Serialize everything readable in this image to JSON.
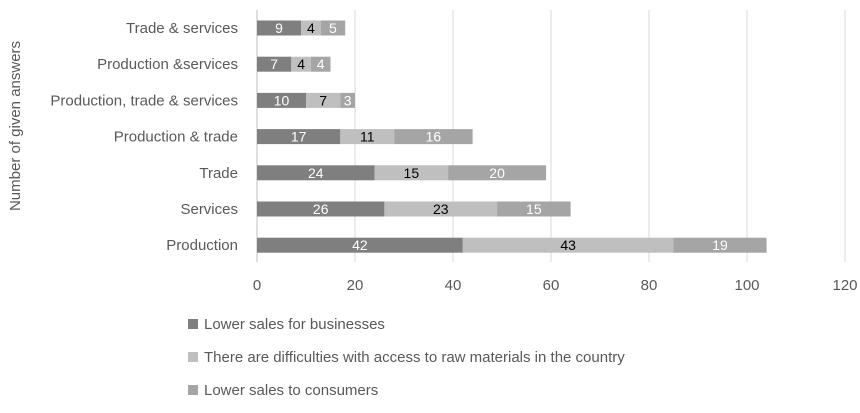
{
  "chart_data": {
    "type": "bar",
    "orientation": "horizontal",
    "stacked": true,
    "title": "",
    "ylabel": "Number of given answers",
    "categories": [
      "Trade & services",
      "Production &services",
      "Production, trade & services",
      "Production & trade",
      "Trade",
      "Services",
      "Production"
    ],
    "series": [
      {
        "name": "Lower sales for businesses",
        "color": "#7f7f7f",
        "label_color": "#ffffff",
        "values": [
          9,
          7,
          10,
          17,
          24,
          26,
          42
        ]
      },
      {
        "name": "There are difficulties with access to raw materials in the country",
        "color": "#bfbfbf",
        "label_color": "#000000",
        "values": [
          4,
          4,
          7,
          11,
          15,
          23,
          43
        ]
      },
      {
        "name": "Lower sales to consumers",
        "color": "#a5a5a5",
        "label_color": "#ffffff",
        "values": [
          5,
          4,
          3,
          16,
          20,
          15,
          19
        ]
      }
    ],
    "x_ticks": [
      "0",
      "20",
      "40",
      "60",
      "80",
      "100",
      "120"
    ],
    "xlim": [
      0,
      120
    ],
    "grid": "vertical",
    "legend_position": "bottom"
  }
}
